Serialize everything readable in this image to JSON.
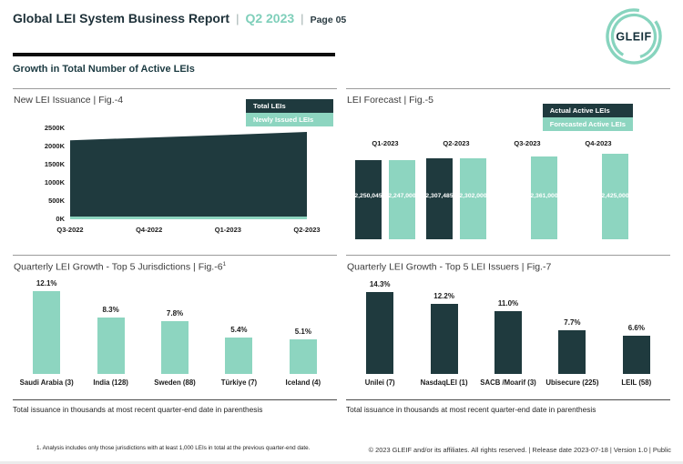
{
  "colors": {
    "dark": "#1F3A3E",
    "teal": "#8DD5C0",
    "accent": "#7FCFBA"
  },
  "header": {
    "title": "Global LEI System Business Report",
    "separator": "|",
    "period": "Q2 2023",
    "page": "Page 05",
    "logo_text": "GLEIF"
  },
  "section_title": "Growth in Total Number of Active LEIs",
  "figures": {
    "fig4": {
      "title": "New LEI Issuance | Fig.-4",
      "legend": [
        {
          "label": "Total LEIs",
          "color": "dark"
        },
        {
          "label": "Newly Issued LEIs",
          "color": "teal"
        }
      ],
      "chart_data": {
        "type": "area",
        "x": [
          "Q3-2022",
          "Q4-2022",
          "Q1-2023",
          "Q2-2023"
        ],
        "series": [
          {
            "name": "Total LEIs",
            "values_thousands": [
              2170,
              2245,
              2320,
              2400
            ]
          },
          {
            "name": "Newly Issued LEIs",
            "values_thousands": [
              65,
              65,
              65,
              65
            ]
          }
        ],
        "ylim_thousands": [
          0,
          2500
        ],
        "yticks": [
          "2500K",
          "2000K",
          "1500K",
          "1000K",
          "500K",
          "0K"
        ],
        "grid": false,
        "legend_position": "top-right"
      }
    },
    "fig5": {
      "title": "LEI Forecast | Fig.-5",
      "legend": [
        {
          "label": "Actual Active LEIs",
          "color": "dark"
        },
        {
          "label": "Forecasted Active LEIs",
          "color": "teal"
        }
      ],
      "chart_data": {
        "type": "bar",
        "categories": [
          "Q1-2023",
          "Q2-2023",
          "Q3-2023",
          "Q4-2023"
        ],
        "series": [
          {
            "name": "Actual Active LEIs",
            "values": [
              2250045,
              2307485,
              null,
              null
            ]
          },
          {
            "name": "Forecasted Active LEIs",
            "values": [
              2247000,
              2302000,
              2361000,
              2425000
            ]
          }
        ],
        "data_labels": true,
        "legend_position": "top-right"
      }
    },
    "fig6": {
      "title_main": "Quarterly LEI Growth - Top 5 Jurisdictions | Fig.-6",
      "title_sup": "1",
      "chart_data": {
        "type": "bar",
        "categories": [
          "Saudi Arabia (3)",
          "India (128)",
          "Sweden (88)",
          "Türkiye (7)",
          "Iceland (4)"
        ],
        "values_pct": [
          12.1,
          8.3,
          7.8,
          5.4,
          5.1
        ],
        "bar_color": "teal",
        "data_labels": true
      },
      "note": "Total issuance in thousands at most recent quarter-end date in parenthesis"
    },
    "fig7": {
      "title_main": "Quarterly LEI Growth - Top 5 LEI Issuers | Fig.-7",
      "title_sup": "",
      "chart_data": {
        "type": "bar",
        "categories": [
          "Unilei (7)",
          "NasdaqLEI (1)",
          "SACB /Moarif (3)",
          "Ubisecure (225)",
          "LEIL (58)"
        ],
        "values_pct": [
          14.3,
          12.2,
          11.0,
          7.7,
          6.6
        ],
        "bar_color": "dark",
        "data_labels": true
      },
      "note": "Total issuance in thousands at most recent quarter-end date in parenthesis"
    }
  },
  "footnote": "1. Analysis includes only those jurisdictions with at least 1,000 LEIs in total at the previous quarter-end date.",
  "footer": "© 2023 GLEIF and/or its affiliates. All rights reserved. | Release date 2023-07-18 | Version 1.0 | Public"
}
